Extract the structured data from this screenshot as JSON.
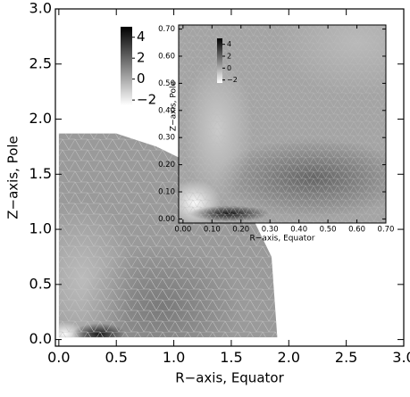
{
  "chart_data": [
    {
      "type": "mesh",
      "xlabel": "R−axis, Equator",
      "ylabel": "Z−axis, Pole",
      "xlim": [
        -0.03,
        3.0
      ],
      "ylim": [
        -0.06,
        3.0
      ],
      "xticks": [
        {
          "value": 0,
          "label": "0.0"
        },
        0.5,
        {
          "value": 1,
          "label": "1.0"
        },
        1.5,
        {
          "value": 2,
          "label": "2.0"
        },
        2.5,
        {
          "value": 3,
          "label": "3.0"
        }
      ],
      "yticks": [
        {
          "value": 0,
          "label": "0.0"
        },
        0.5,
        {
          "value": 1,
          "label": "1.0"
        },
        1.5,
        {
          "value": 2,
          "label": "2.0"
        },
        2.5,
        {
          "value": 3,
          "label": "3.0"
        }
      ],
      "colorbar": {
        "clim": [
          -2.5,
          5
        ],
        "ticks": [
          4,
          2,
          0,
          {
            "value": -2,
            "label": "−2"
          }
        ],
        "colors": [
          "#ffffff",
          "#000000"
        ]
      }
    },
    {
      "type": "mesh",
      "xlabel": "R−axis, Equator",
      "ylabel": "Z−axis, Pole",
      "xlim": [
        -0.015,
        0.7
      ],
      "ylim": [
        -0.015,
        0.715
      ],
      "xticks": [
        {
          "value": 0,
          "label": "0.00"
        },
        {
          "value": 0.1,
          "label": "0.10"
        },
        {
          "value": 0.2,
          "label": "0.20"
        },
        {
          "value": 0.3,
          "label": "0.30"
        },
        {
          "value": 0.4,
          "label": "0.40"
        },
        {
          "value": 0.5,
          "label": "0.50"
        },
        {
          "value": 0.6,
          "label": "0.60"
        },
        {
          "value": 0.7,
          "label": "0.70"
        }
      ],
      "yticks": [
        {
          "value": 0,
          "label": "0.00"
        },
        {
          "value": 0.1,
          "label": "0.10"
        },
        {
          "value": 0.2,
          "label": "0.20"
        },
        {
          "value": 0.3,
          "label": "0.30"
        },
        {
          "value": 0.4,
          "label": "0.40"
        },
        {
          "value": 0.5,
          "label": "0.50"
        },
        {
          "value": 0.6,
          "label": "0.60"
        },
        {
          "value": 0.7,
          "label": "0.70"
        }
      ],
      "colorbar": {
        "clim": [
          -2.5,
          5
        ],
        "ticks": [
          4,
          2,
          0,
          {
            "value": -2,
            "label": "−2"
          }
        ],
        "colors": [
          "#ffffff",
          "#000000"
        ]
      }
    }
  ]
}
